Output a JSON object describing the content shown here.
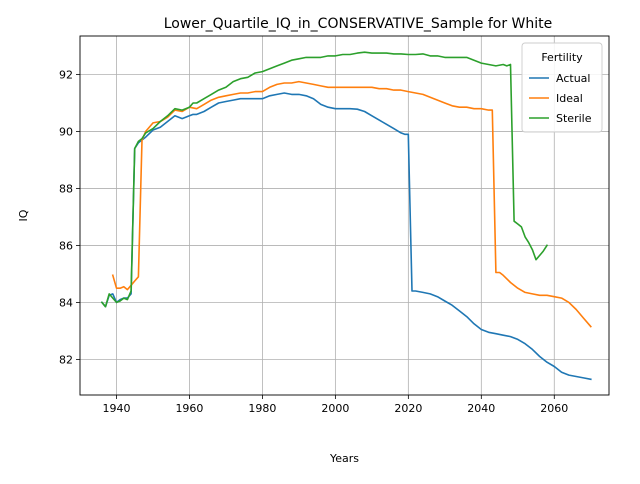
{
  "chart_data": {
    "type": "line",
    "title": "Lower_Quartile_IQ_in_CONSERVATIVE_Sample for White",
    "xlabel": "Years",
    "ylabel": "IQ",
    "xlim": [
      1930,
      2075
    ],
    "ylim": [
      80.75,
      93.35
    ],
    "xticks": [
      1940,
      1960,
      1980,
      2000,
      2020,
      2040,
      2060
    ],
    "yticks": [
      82,
      84,
      86,
      88,
      90,
      92
    ],
    "grid": true,
    "legend": {
      "title": "Fertility",
      "placement": "top-right"
    },
    "series": [
      {
        "name": "Actual",
        "color": "#1f77b4",
        "x": [
          1936,
          1937,
          1938,
          1939,
          1940,
          1941,
          1942,
          1943,
          1944,
          1945,
          1946,
          1947,
          1948,
          1950,
          1952,
          1954,
          1956,
          1958,
          1960,
          1961,
          1962,
          1964,
          1966,
          1968,
          1970,
          1972,
          1974,
          1976,
          1978,
          1980,
          1982,
          1984,
          1986,
          1988,
          1990,
          1992,
          1994,
          1996,
          1998,
          2000,
          2002,
          2004,
          2006,
          2008,
          2010,
          2012,
          2014,
          2016,
          2018,
          2019,
          2020,
          2021,
          2022,
          2024,
          2026,
          2028,
          2030,
          2032,
          2034,
          2036,
          2038,
          2040,
          2042,
          2044,
          2046,
          2048,
          2050,
          2052,
          2054,
          2056,
          2058,
          2060,
          2062,
          2064,
          2066,
          2068,
          2070
        ],
        "y": [
          84.0,
          83.85,
          84.25,
          84.3,
          84.0,
          84.1,
          84.15,
          84.15,
          84.3,
          89.4,
          89.6,
          89.7,
          89.8,
          90.05,
          90.15,
          90.35,
          90.55,
          90.45,
          90.55,
          90.6,
          90.6,
          90.7,
          90.85,
          91.0,
          91.05,
          91.1,
          91.15,
          91.15,
          91.15,
          91.15,
          91.25,
          91.3,
          91.35,
          91.3,
          91.3,
          91.25,
          91.15,
          90.95,
          90.85,
          90.8,
          90.8,
          90.8,
          90.78,
          90.7,
          90.55,
          90.4,
          90.25,
          90.1,
          89.95,
          89.9,
          89.9,
          84.4,
          84.4,
          84.35,
          84.3,
          84.2,
          84.05,
          83.9,
          83.7,
          83.5,
          83.25,
          83.05,
          82.95,
          82.9,
          82.85,
          82.8,
          82.7,
          82.55,
          82.35,
          82.1,
          81.9,
          81.75,
          81.55,
          81.45,
          81.4,
          81.35,
          81.3
        ]
      },
      {
        "name": "Ideal",
        "color": "#ff7f0e",
        "x": [
          1939,
          1940,
          1941,
          1942,
          1943,
          1944,
          1945,
          1946,
          1947,
          1948,
          1950,
          1952,
          1954,
          1956,
          1958,
          1960,
          1962,
          1964,
          1966,
          1968,
          1970,
          1972,
          1974,
          1976,
          1978,
          1980,
          1982,
          1984,
          1986,
          1988,
          1990,
          1992,
          1994,
          1996,
          1998,
          2000,
          2002,
          2004,
          2006,
          2008,
          2010,
          2012,
          2014,
          2016,
          2018,
          2020,
          2022,
          2024,
          2026,
          2028,
          2030,
          2032,
          2034,
          2036,
          2038,
          2040,
          2042,
          2043,
          2044,
          2045,
          2046,
          2048,
          2050,
          2052,
          2054,
          2056,
          2058,
          2060,
          2062,
          2064,
          2066,
          2068,
          2070
        ],
        "y": [
          84.95,
          84.5,
          84.5,
          84.55,
          84.45,
          84.6,
          84.75,
          84.9,
          89.7,
          90.0,
          90.3,
          90.35,
          90.5,
          90.75,
          90.7,
          90.85,
          90.8,
          90.95,
          91.1,
          91.2,
          91.25,
          91.3,
          91.35,
          91.35,
          91.4,
          91.4,
          91.55,
          91.65,
          91.7,
          91.7,
          91.75,
          91.7,
          91.65,
          91.6,
          91.55,
          91.55,
          91.55,
          91.55,
          91.55,
          91.55,
          91.55,
          91.5,
          91.5,
          91.45,
          91.45,
          91.4,
          91.35,
          91.3,
          91.2,
          91.1,
          91.0,
          90.9,
          90.85,
          90.85,
          90.8,
          90.8,
          90.75,
          90.75,
          85.05,
          85.05,
          84.95,
          84.7,
          84.5,
          84.35,
          84.3,
          84.25,
          84.25,
          84.2,
          84.15,
          84.0,
          83.75,
          83.45,
          83.15
        ]
      },
      {
        "name": "Sterile",
        "color": "#2ca02c",
        "x": [
          1936,
          1937,
          1938,
          1939,
          1940,
          1941,
          1942,
          1943,
          1944,
          1945,
          1946,
          1947,
          1948,
          1950,
          1952,
          1954,
          1956,
          1958,
          1960,
          1961,
          1962,
          1964,
          1966,
          1968,
          1970,
          1972,
          1974,
          1976,
          1978,
          1980,
          1982,
          1984,
          1986,
          1988,
          1990,
          1992,
          1994,
          1996,
          1998,
          2000,
          2002,
          2004,
          2006,
          2008,
          2010,
          2012,
          2014,
          2016,
          2018,
          2020,
          2022,
          2024,
          2026,
          2028,
          2030,
          2032,
          2034,
          2036,
          2038,
          2040,
          2042,
          2044,
          2046,
          2047,
          2048,
          2049,
          2050,
          2051,
          2052,
          2053,
          2054,
          2055,
          2056,
          2057,
          2058
        ],
        "y": [
          84.0,
          83.85,
          84.3,
          84.15,
          84.0,
          84.05,
          84.15,
          84.1,
          84.4,
          89.4,
          89.65,
          89.75,
          89.95,
          90.1,
          90.35,
          90.55,
          90.8,
          90.75,
          90.85,
          91.0,
          91.0,
          91.15,
          91.3,
          91.45,
          91.55,
          91.75,
          91.85,
          91.9,
          92.05,
          92.1,
          92.2,
          92.3,
          92.4,
          92.5,
          92.55,
          92.6,
          92.6,
          92.6,
          92.65,
          92.65,
          92.7,
          92.7,
          92.75,
          92.78,
          92.75,
          92.75,
          92.75,
          92.72,
          92.72,
          92.7,
          92.7,
          92.72,
          92.65,
          92.65,
          92.6,
          92.6,
          92.6,
          92.6,
          92.5,
          92.4,
          92.35,
          92.3,
          92.35,
          92.3,
          92.35,
          86.85,
          86.75,
          86.65,
          86.3,
          86.1,
          85.85,
          85.5,
          85.65,
          85.8,
          86.0
        ]
      }
    ]
  }
}
